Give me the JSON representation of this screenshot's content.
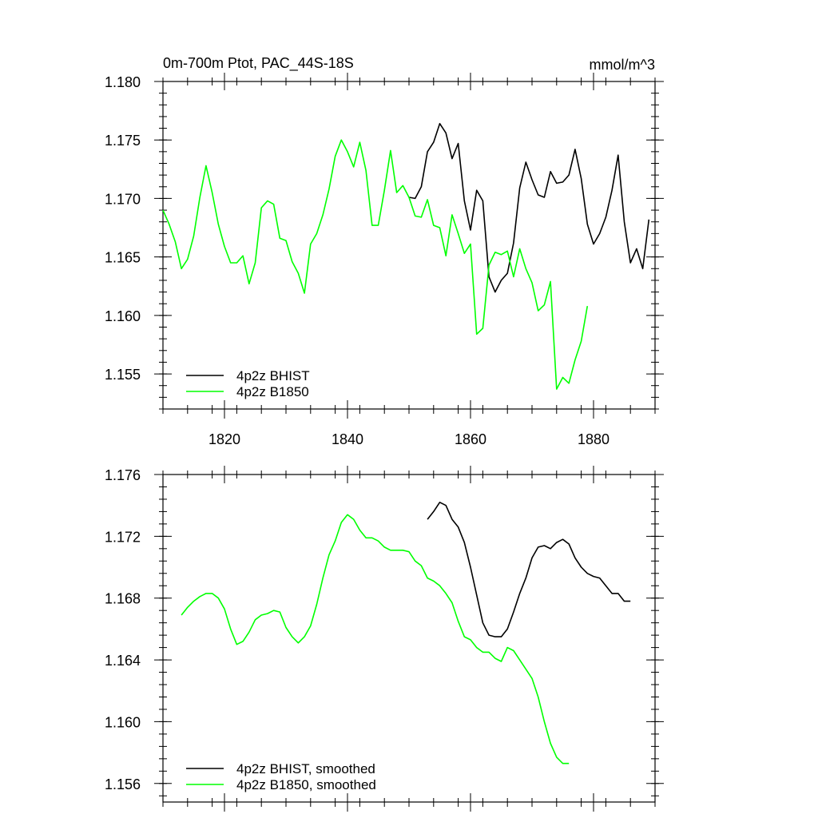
{
  "colors": {
    "bhist": "#000000",
    "b1850": "#00ff00"
  },
  "chart_data": [
    {
      "type": "line",
      "title_left": "0m-700m Ptot, PAC_44S-18S",
      "title_right": "mmol/m^3",
      "xlim": [
        1810,
        1890
      ],
      "ylim": [
        1.152,
        1.18
      ],
      "xticks": [
        1820,
        1840,
        1860,
        1880
      ],
      "xtick_labels": [
        "1820",
        "1840",
        "1860",
        "1880"
      ],
      "yticks": [
        1.155,
        1.16,
        1.165,
        1.17,
        1.175,
        1.18
      ],
      "ytick_labels": [
        "1.155",
        "1.160",
        "1.165",
        "1.170",
        "1.175",
        "1.180"
      ],
      "legend_position": "bottom-left",
      "series": [
        {
          "name": "4p2z BHIST",
          "color": "#000000",
          "x": [
            1850,
            1851,
            1852,
            1853,
            1854,
            1855,
            1856,
            1857,
            1858,
            1859,
            1860,
            1861,
            1862,
            1863,
            1864,
            1865,
            1866,
            1867,
            1868,
            1869,
            1870,
            1871,
            1872,
            1873,
            1874,
            1875,
            1876,
            1877,
            1878,
            1879,
            1880,
            1881,
            1882,
            1883,
            1884,
            1885,
            1886,
            1887,
            1888,
            1889
          ],
          "y": [
            1.1701,
            1.17,
            1.171,
            1.174,
            1.1748,
            1.1764,
            1.1756,
            1.1734,
            1.1747,
            1.1698,
            1.1673,
            1.1707,
            1.1698,
            1.1633,
            1.162,
            1.163,
            1.1636,
            1.1662,
            1.1709,
            1.1731,
            1.1716,
            1.1703,
            1.1701,
            1.1723,
            1.1713,
            1.1714,
            1.172,
            1.1742,
            1.1717,
            1.1678,
            1.1661,
            1.167,
            1.1684,
            1.1707,
            1.1737,
            1.168,
            1.1645,
            1.1657,
            1.164,
            1.1682
          ]
        },
        {
          "name": "4p2z B1850",
          "color": "#00ff00",
          "x": [
            1810,
            1811,
            1812,
            1813,
            1814,
            1815,
            1816,
            1817,
            1818,
            1819,
            1820,
            1821,
            1822,
            1823,
            1824,
            1825,
            1826,
            1827,
            1828,
            1829,
            1830,
            1831,
            1832,
            1833,
            1834,
            1835,
            1836,
            1837,
            1838,
            1839,
            1840,
            1841,
            1842,
            1843,
            1844,
            1845,
            1846,
            1847,
            1848,
            1849,
            1850,
            1851,
            1852,
            1853,
            1854,
            1855,
            1856,
            1857,
            1858,
            1859,
            1860,
            1861,
            1862,
            1863,
            1864,
            1865,
            1866,
            1867,
            1868,
            1869,
            1870,
            1871,
            1872,
            1873,
            1874,
            1875,
            1876,
            1877,
            1878,
            1879
          ],
          "y": [
            1.169,
            1.1678,
            1.1663,
            1.164,
            1.1648,
            1.1668,
            1.1701,
            1.1728,
            1.1705,
            1.1678,
            1.1659,
            1.1645,
            1.1645,
            1.1651,
            1.1627,
            1.1645,
            1.1692,
            1.1698,
            1.1695,
            1.1666,
            1.1664,
            1.1646,
            1.1636,
            1.1619,
            1.1661,
            1.167,
            1.1686,
            1.1708,
            1.1736,
            1.175,
            1.174,
            1.1727,
            1.1748,
            1.1724,
            1.1677,
            1.1677,
            1.1707,
            1.1741,
            1.1705,
            1.1711,
            1.1701,
            1.1685,
            1.1684,
            1.1699,
            1.1677,
            1.1675,
            1.1651,
            1.1686,
            1.167,
            1.1653,
            1.1661,
            1.1584,
            1.1589,
            1.1643,
            1.1654,
            1.1652,
            1.1655,
            1.1633,
            1.1657,
            1.164,
            1.1628,
            1.1604,
            1.1609,
            1.1629,
            1.1537,
            1.1547,
            1.1542,
            1.1562,
            1.1578,
            1.1608
          ]
        }
      ]
    },
    {
      "type": "line",
      "xlim": [
        1810,
        1890
      ],
      "ylim": [
        1.1548,
        1.176
      ],
      "xticks": [
        1820,
        1840,
        1860,
        1880
      ],
      "yticks": [
        1.156,
        1.16,
        1.164,
        1.168,
        1.172,
        1.176
      ],
      "ytick_labels": [
        "1.156",
        "1.160",
        "1.164",
        "1.168",
        "1.172",
        "1.176"
      ],
      "legend_position": "bottom-left",
      "series": [
        {
          "name": "4p2z BHIST, smoothed",
          "color": "#000000",
          "x": [
            1853,
            1854,
            1855,
            1856,
            1857,
            1858,
            1859,
            1860,
            1861,
            1862,
            1863,
            1864,
            1865,
            1866,
            1867,
            1868,
            1869,
            1870,
            1871,
            1872,
            1873,
            1874,
            1875,
            1876,
            1877,
            1878,
            1879,
            1880,
            1881,
            1882,
            1883,
            1884,
            1885,
            1886
          ],
          "y": [
            1.1731,
            1.1736,
            1.1742,
            1.174,
            1.1731,
            1.1726,
            1.1716,
            1.17,
            1.1682,
            1.1664,
            1.1656,
            1.1655,
            1.1655,
            1.166,
            1.1671,
            1.1683,
            1.1693,
            1.1706,
            1.1713,
            1.1714,
            1.1712,
            1.1716,
            1.1718,
            1.1715,
            1.1706,
            1.17,
            1.1696,
            1.1694,
            1.1693,
            1.1688,
            1.1683,
            1.1683,
            1.1678,
            1.1678
          ]
        },
        {
          "name": "4p2z B1850, smoothed",
          "color": "#00ff00",
          "x": [
            1813,
            1814,
            1815,
            1816,
            1817,
            1818,
            1819,
            1820,
            1821,
            1822,
            1823,
            1824,
            1825,
            1826,
            1827,
            1828,
            1829,
            1830,
            1831,
            1832,
            1833,
            1834,
            1835,
            1836,
            1837,
            1838,
            1839,
            1840,
            1841,
            1842,
            1843,
            1844,
            1845,
            1846,
            1847,
            1848,
            1849,
            1850,
            1851,
            1852,
            1853,
            1854,
            1855,
            1856,
            1857,
            1858,
            1859,
            1860,
            1861,
            1862,
            1863,
            1864,
            1865,
            1866,
            1867,
            1868,
            1869,
            1870,
            1871,
            1872,
            1873,
            1874,
            1875,
            1876
          ],
          "y": [
            1.1669,
            1.1674,
            1.1678,
            1.1681,
            1.1683,
            1.1683,
            1.168,
            1.1673,
            1.166,
            1.165,
            1.1652,
            1.1658,
            1.1666,
            1.1669,
            1.167,
            1.1672,
            1.1671,
            1.1661,
            1.1655,
            1.1651,
            1.1655,
            1.1662,
            1.1676,
            1.1693,
            1.1708,
            1.1717,
            1.1729,
            1.1734,
            1.1731,
            1.1724,
            1.1719,
            1.1719,
            1.1717,
            1.1713,
            1.1711,
            1.1711,
            1.1711,
            1.171,
            1.1704,
            1.1701,
            1.1693,
            1.1691,
            1.1688,
            1.1683,
            1.1677,
            1.1665,
            1.1655,
            1.1653,
            1.1648,
            1.1645,
            1.1645,
            1.1641,
            1.1639,
            1.1648,
            1.1646,
            1.164,
            1.1634,
            1.1628,
            1.1616,
            1.16,
            1.1586,
            1.1577,
            1.1573,
            1.1573
          ]
        }
      ]
    }
  ]
}
